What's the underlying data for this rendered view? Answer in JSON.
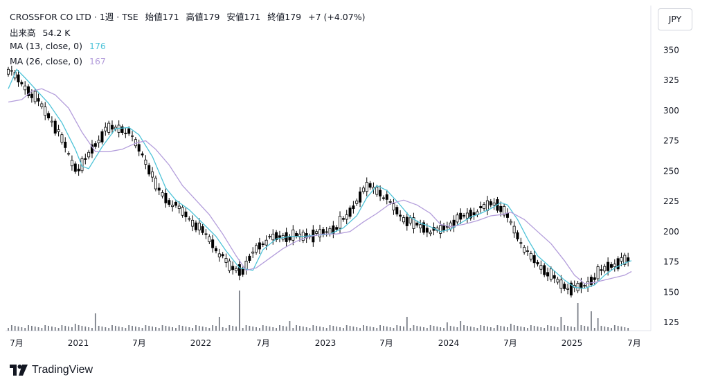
{
  "header": {
    "symbol": "CROSSFOR CO LTD",
    "sep1": "·",
    "interval": "1週",
    "sep2": "·",
    "exchange": "TSE",
    "open_label": "始値",
    "open": "171",
    "high_label": "高値",
    "high": "179",
    "low_label": "安値",
    "low": "171",
    "close_label": "終値",
    "close": "179",
    "change": "+7 (+4.07%)"
  },
  "volume_legend": {
    "label": "出来高",
    "value": "54.2 K"
  },
  "ma13": {
    "label": "MA (13, close, 0)",
    "value": "176",
    "color": "#4dc3d8"
  },
  "ma26": {
    "label": "MA (26, close, 0)",
    "value": "167",
    "color": "#b39ddb"
  },
  "currency": "JPY",
  "branding": "TradingView",
  "chart_data": {
    "type": "line",
    "y_ticks": [
      125,
      150,
      175,
      200,
      225,
      250,
      275,
      300,
      325,
      350
    ],
    "x_ticks": [
      "7月",
      "2021",
      "7月",
      "2022",
      "7月",
      "2023",
      "7月",
      "2024",
      "7月",
      "2025",
      "7月"
    ],
    "ylim": [
      115,
      360
    ],
    "series": [
      {
        "name": "MA (13, close, 0)",
        "color": "#4dc3d8",
        "values": [
          [
            0,
            318
          ],
          [
            5,
            334
          ],
          [
            10,
            327
          ],
          [
            16,
            318
          ],
          [
            24,
            306
          ],
          [
            32,
            290
          ],
          [
            40,
            268
          ],
          [
            44,
            254
          ],
          [
            48,
            252
          ],
          [
            56,
            270
          ],
          [
            64,
            285
          ],
          [
            72,
            286
          ],
          [
            78,
            280
          ],
          [
            86,
            262
          ],
          [
            94,
            236
          ],
          [
            100,
            226
          ],
          [
            108,
            218
          ],
          [
            116,
            207
          ],
          [
            124,
            196
          ],
          [
            130,
            184
          ],
          [
            138,
            170
          ],
          [
            146,
            168
          ],
          [
            152,
            185
          ],
          [
            160,
            194
          ],
          [
            168,
            196
          ],
          [
            176,
            196
          ],
          [
            184,
            197
          ],
          [
            192,
            198
          ],
          [
            200,
            203
          ],
          [
            208,
            213
          ],
          [
            214,
            228
          ],
          [
            220,
            238
          ],
          [
            226,
            234
          ],
          [
            232,
            225
          ],
          [
            240,
            212
          ],
          [
            246,
            207
          ],
          [
            252,
            204
          ],
          [
            258,
            200
          ],
          [
            264,
            202
          ],
          [
            270,
            207
          ],
          [
            276,
            212
          ],
          [
            282,
            215
          ],
          [
            288,
            219
          ],
          [
            294,
            224
          ],
          [
            298,
            222
          ],
          [
            304,
            210
          ],
          [
            310,
            194
          ],
          [
            316,
            180
          ],
          [
            324,
            170
          ],
          [
            332,
            160
          ],
          [
            338,
            154
          ],
          [
            344,
            153
          ],
          [
            350,
            156
          ],
          [
            356,
            164
          ],
          [
            362,
            170
          ],
          [
            368,
            174
          ],
          [
            372,
            176
          ]
        ]
      },
      {
        "name": "MA (26, close, 0)",
        "color": "#b39ddb",
        "values": [
          [
            0,
            307
          ],
          [
            8,
            309
          ],
          [
            14,
            316
          ],
          [
            20,
            318
          ],
          [
            28,
            313
          ],
          [
            36,
            302
          ],
          [
            44,
            282
          ],
          [
            52,
            266
          ],
          [
            60,
            266
          ],
          [
            68,
            268
          ],
          [
            76,
            273
          ],
          [
            82,
            275
          ],
          [
            88,
            268
          ],
          [
            96,
            255
          ],
          [
            104,
            238
          ],
          [
            112,
            226
          ],
          [
            120,
            214
          ],
          [
            128,
            198
          ],
          [
            136,
            180
          ],
          [
            142,
            168
          ],
          [
            148,
            170
          ],
          [
            156,
            178
          ],
          [
            164,
            186
          ],
          [
            172,
            192
          ],
          [
            180,
            196
          ],
          [
            188,
            198
          ],
          [
            196,
            198
          ],
          [
            204,
            200
          ],
          [
            212,
            208
          ],
          [
            220,
            215
          ],
          [
            228,
            223
          ],
          [
            236,
            226
          ],
          [
            244,
            222
          ],
          [
            252,
            215
          ],
          [
            258,
            206
          ],
          [
            264,
            204
          ],
          [
            272,
            206
          ],
          [
            280,
            209
          ],
          [
            288,
            213
          ],
          [
            294,
            214
          ],
          [
            300,
            216
          ],
          [
            308,
            210
          ],
          [
            316,
            200
          ],
          [
            324,
            190
          ],
          [
            332,
            176
          ],
          [
            338,
            164
          ],
          [
            344,
            157
          ],
          [
            350,
            158
          ],
          [
            356,
            160
          ],
          [
            362,
            162
          ],
          [
            368,
            164
          ],
          [
            372,
            167
          ]
        ]
      }
    ],
    "ohlc_note": "weekly candlesticks, black/white"
  }
}
